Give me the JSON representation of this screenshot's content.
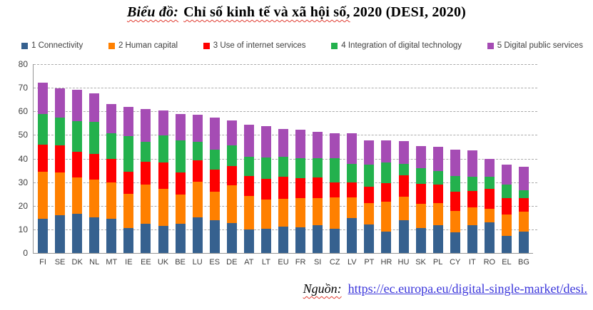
{
  "title": {
    "prefix": "Biểu đồ:",
    "middle": "Chỉ số kinh tế và xã hội số,",
    "tail": "2020 (DESI, 2020)"
  },
  "footer": {
    "label": "Nguồn:",
    "link_text": "https://ec.europa.eu/digital-single-market/desi."
  },
  "chart_data": {
    "type": "bar",
    "stacked": true,
    "legend_position": "top",
    "grid": "horizontal-dashed",
    "ylim": [
      0,
      80
    ],
    "yticks": [
      0,
      10,
      20,
      30,
      40,
      50,
      60,
      70,
      80
    ],
    "categories": [
      "FI",
      "SE",
      "DK",
      "NL",
      "MT",
      "IE",
      "EE",
      "UK",
      "BE",
      "LU",
      "ES",
      "DE",
      "AT",
      "LT",
      "EU",
      "FR",
      "SI",
      "CZ",
      "LV",
      "PT",
      "HR",
      "HU",
      "SK",
      "PL",
      "CY",
      "IT",
      "RO",
      "EL",
      "BG"
    ],
    "series": [
      {
        "name": "1 Connectivity",
        "color": "#36618f",
        "values": [
          14.5,
          16.0,
          16.5,
          15.0,
          14.5,
          10.5,
          12.5,
          11.5,
          12.4,
          15.2,
          14.0,
          12.8,
          10.0,
          10.4,
          11.2,
          10.8,
          11.9,
          10.2,
          14.7,
          12.0,
          9.2,
          13.9,
          10.6,
          11.7,
          8.8,
          11.9,
          12.9,
          7.4,
          9.1
        ]
      },
      {
        "name": "2 Human capital",
        "color": "#ff8000",
        "values": [
          20.0,
          18.0,
          15.5,
          16.0,
          15.5,
          14.5,
          16.5,
          15.7,
          12.3,
          15.0,
          11.9,
          15.8,
          14.3,
          12.4,
          11.9,
          12.5,
          11.4,
          13.4,
          8.9,
          9.1,
          12.6,
          9.9,
          10.2,
          9.4,
          8.9,
          7.3,
          5.8,
          8.8,
          8.4
        ]
      },
      {
        "name": "3 Use of internet services",
        "color": "#fe0000",
        "values": [
          11.5,
          11.5,
          11.0,
          11.0,
          9.8,
          9.5,
          9.7,
          11.2,
          9.5,
          9.0,
          9.5,
          8.3,
          8.2,
          8.7,
          9.2,
          8.5,
          8.8,
          6.3,
          6.3,
          7.1,
          7.9,
          9.1,
          8.4,
          7.8,
          8.3,
          7.1,
          8.4,
          7.1,
          5.8
        ]
      },
      {
        "name": "4 Integration of digital technology",
        "color": "#23b14d",
        "values": [
          13.0,
          12.0,
          13.0,
          13.5,
          11.0,
          15.0,
          8.3,
          11.5,
          13.4,
          7.8,
          8.4,
          8.8,
          8.3,
          9.1,
          8.4,
          8.4,
          8.1,
          10.3,
          7.9,
          9.1,
          8.8,
          4.9,
          6.8,
          5.7,
          6.6,
          5.9,
          5.3,
          5.6,
          3.2
        ]
      },
      {
        "name": "5 Digital public services",
        "color": "#a54cb4",
        "values": [
          13.3,
          12.2,
          13.1,
          12.2,
          12.3,
          12.3,
          14.0,
          10.5,
          11.3,
          11.6,
          13.7,
          10.4,
          13.5,
          13.3,
          11.9,
          12.0,
          11.0,
          10.6,
          12.9,
          10.3,
          9.1,
          9.7,
          9.2,
          10.4,
          11.2,
          11.4,
          7.6,
          8.4,
          9.9
        ]
      }
    ]
  }
}
